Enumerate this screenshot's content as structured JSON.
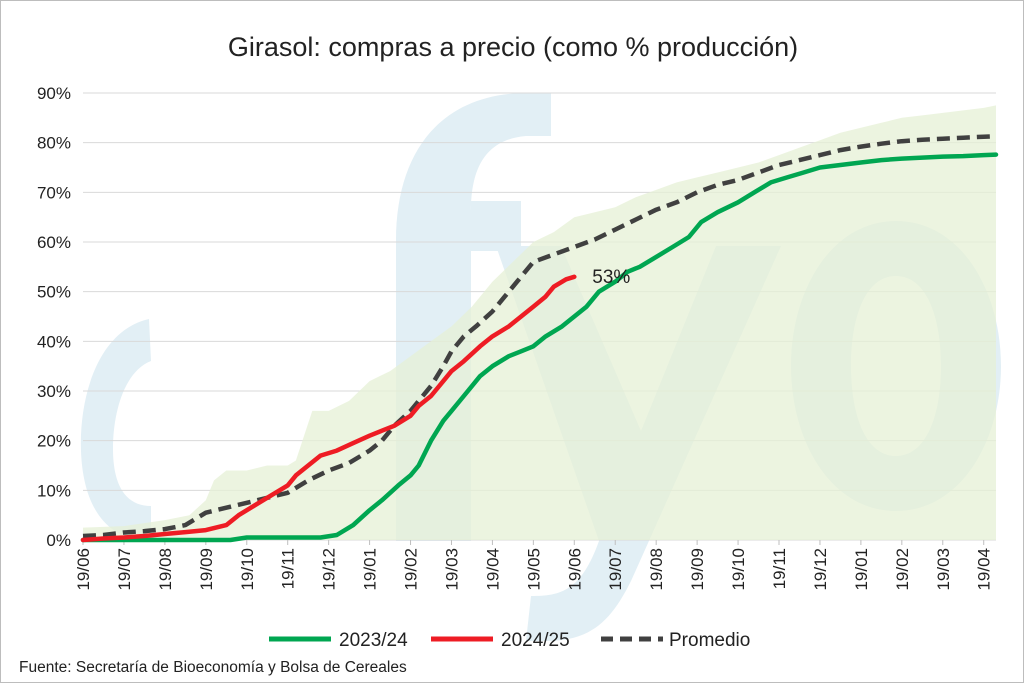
{
  "chart_data": {
    "type": "line",
    "title": "Girasol: compras a precio (como % producción)",
    "source": "Fuente: Secretaría de Bioeconomía y Bolsa de Cereales",
    "xlabel": "",
    "ylabel": "",
    "ylim": [
      0,
      90
    ],
    "yticks": [
      "0%",
      "10%",
      "20%",
      "30%",
      "40%",
      "50%",
      "60%",
      "70%",
      "80%",
      "90%"
    ],
    "x_tick_labels": [
      "19/06",
      "19/07",
      "19/08",
      "19/09",
      "19/10",
      "19/11",
      "19/12",
      "19/01",
      "19/02",
      "19/03",
      "19/04",
      "19/05",
      "19/06",
      "19/07",
      "19/08",
      "19/09",
      "19/10",
      "19/11",
      "19/12",
      "19/01",
      "19/02",
      "19/03",
      "19/04"
    ],
    "grid": "horizontal",
    "legend_position": "bottom",
    "annotation": "53%",
    "watermark": "cfyo",
    "series": [
      {
        "name": "2023/24",
        "color": "#00a651",
        "style": "solid",
        "points": [
          [
            0,
            0
          ],
          [
            1,
            0
          ],
          [
            2,
            0
          ],
          [
            3,
            0
          ],
          [
            3.6,
            0
          ],
          [
            4,
            0.5
          ],
          [
            5,
            0.5
          ],
          [
            5.8,
            0.5
          ],
          [
            6.2,
            1
          ],
          [
            6.6,
            3
          ],
          [
            7,
            6
          ],
          [
            7.3,
            8
          ],
          [
            7.7,
            11
          ],
          [
            8,
            13
          ],
          [
            8.2,
            15
          ],
          [
            8.5,
            20
          ],
          [
            8.8,
            24
          ],
          [
            9,
            26
          ],
          [
            9.3,
            29
          ],
          [
            9.7,
            33
          ],
          [
            10,
            35
          ],
          [
            10.4,
            37
          ],
          [
            10.7,
            38
          ],
          [
            11,
            39
          ],
          [
            11.3,
            41
          ],
          [
            11.7,
            43
          ],
          [
            12,
            45
          ],
          [
            12.3,
            47
          ],
          [
            12.6,
            50
          ],
          [
            13,
            52
          ],
          [
            13.3,
            54
          ],
          [
            13.6,
            55
          ],
          [
            14,
            57
          ],
          [
            14.4,
            59
          ],
          [
            14.8,
            61
          ],
          [
            15.1,
            64
          ],
          [
            15.5,
            66
          ],
          [
            16,
            68
          ],
          [
            16.4,
            70
          ],
          [
            16.8,
            72
          ],
          [
            17.2,
            73
          ],
          [
            17.6,
            74
          ],
          [
            18,
            75
          ],
          [
            18.5,
            75.5
          ],
          [
            19,
            76
          ],
          [
            19.5,
            76.5
          ],
          [
            20,
            76.8
          ],
          [
            20.5,
            77
          ],
          [
            21,
            77.2
          ],
          [
            21.5,
            77.3
          ],
          [
            22,
            77.5
          ],
          [
            22.3,
            77.6
          ]
        ]
      },
      {
        "name": "2024/25",
        "color": "#ee1c24",
        "style": "solid",
        "points": [
          [
            0,
            0
          ],
          [
            0.5,
            0.3
          ],
          [
            1,
            0.5
          ],
          [
            1.5,
            0.8
          ],
          [
            2,
            1.2
          ],
          [
            2.5,
            1.6
          ],
          [
            3,
            2
          ],
          [
            3.5,
            3
          ],
          [
            3.8,
            5
          ],
          [
            4.2,
            7
          ],
          [
            4.6,
            9
          ],
          [
            5,
            11
          ],
          [
            5.2,
            13
          ],
          [
            5.5,
            15
          ],
          [
            5.8,
            17
          ],
          [
            6.2,
            18
          ],
          [
            6.6,
            19.5
          ],
          [
            7,
            21
          ],
          [
            7.3,
            22
          ],
          [
            7.6,
            23
          ],
          [
            8,
            25
          ],
          [
            8.2,
            27
          ],
          [
            8.5,
            29
          ],
          [
            8.8,
            32
          ],
          [
            9,
            34
          ],
          [
            9.3,
            36
          ],
          [
            9.7,
            39
          ],
          [
            10,
            41
          ],
          [
            10.4,
            43
          ],
          [
            10.7,
            45
          ],
          [
            11,
            47
          ],
          [
            11.3,
            49
          ],
          [
            11.5,
            51
          ],
          [
            11.8,
            52.5
          ],
          [
            12,
            53
          ]
        ]
      },
      {
        "name": "Promedio",
        "color": "#404040",
        "style": "dashed",
        "points": [
          [
            0,
            0.8
          ],
          [
            0.5,
            1
          ],
          [
            1,
            1.5
          ],
          [
            1.5,
            1.8
          ],
          [
            2,
            2.2
          ],
          [
            2.5,
            3
          ],
          [
            3,
            5.5
          ],
          [
            3.5,
            6.5
          ],
          [
            4,
            7.5
          ],
          [
            4.5,
            8.5
          ],
          [
            5,
            9.5
          ],
          [
            5.5,
            12
          ],
          [
            6,
            14
          ],
          [
            6.5,
            15.5
          ],
          [
            7,
            18
          ],
          [
            7.3,
            20
          ],
          [
            7.6,
            23
          ],
          [
            8,
            26
          ],
          [
            8.2,
            28
          ],
          [
            8.5,
            31
          ],
          [
            8.8,
            35
          ],
          [
            9,
            38
          ],
          [
            9.3,
            41
          ],
          [
            9.6,
            43
          ],
          [
            10,
            46
          ],
          [
            10.3,
            49
          ],
          [
            10.6,
            52
          ],
          [
            11,
            56
          ],
          [
            11.5,
            57.5
          ],
          [
            12,
            59
          ],
          [
            12.5,
            60.5
          ],
          [
            13,
            62.5
          ],
          [
            13.5,
            64.5
          ],
          [
            14,
            66.5
          ],
          [
            14.5,
            68
          ],
          [
            15,
            70
          ],
          [
            15.5,
            71.5
          ],
          [
            16,
            72.5
          ],
          [
            16.5,
            74
          ],
          [
            17,
            75.5
          ],
          [
            17.5,
            76.5
          ],
          [
            18,
            77.5
          ],
          [
            18.5,
            78.5
          ],
          [
            19,
            79.2
          ],
          [
            19.5,
            79.8
          ],
          [
            20,
            80.3
          ],
          [
            20.5,
            80.6
          ],
          [
            21,
            80.8
          ],
          [
            21.5,
            81
          ],
          [
            22,
            81.2
          ],
          [
            22.3,
            81.3
          ]
        ]
      },
      {
        "name": "",
        "role": "range-band",
        "color": "#e6f0d6",
        "upper": [
          [
            0,
            2.5
          ],
          [
            1,
            2.8
          ],
          [
            2,
            4
          ],
          [
            2.6,
            5
          ],
          [
            3,
            8
          ],
          [
            3.2,
            12
          ],
          [
            3.5,
            14
          ],
          [
            4,
            14
          ],
          [
            4.5,
            15
          ],
          [
            5,
            15
          ],
          [
            5.2,
            16
          ],
          [
            5.6,
            26
          ],
          [
            6,
            26
          ],
          [
            6.5,
            28
          ],
          [
            7,
            32
          ],
          [
            7.5,
            34
          ],
          [
            8,
            37
          ],
          [
            8.5,
            40
          ],
          [
            9,
            43
          ],
          [
            9.5,
            47
          ],
          [
            10,
            52
          ],
          [
            10.5,
            56
          ],
          [
            11,
            60
          ],
          [
            11.5,
            62
          ],
          [
            12,
            65
          ],
          [
            12.5,
            66
          ],
          [
            13,
            67
          ],
          [
            13.5,
            69
          ],
          [
            14,
            70.5
          ],
          [
            14.5,
            72
          ],
          [
            15,
            73
          ],
          [
            15.5,
            74
          ],
          [
            16,
            75
          ],
          [
            16.5,
            76
          ],
          [
            17,
            77.5
          ],
          [
            17.5,
            79
          ],
          [
            18,
            80.5
          ],
          [
            18.5,
            82
          ],
          [
            19,
            83
          ],
          [
            19.5,
            84
          ],
          [
            20,
            85
          ],
          [
            20.5,
            85.5
          ],
          [
            21,
            86
          ],
          [
            21.5,
            86.5
          ],
          [
            22,
            87
          ],
          [
            22.3,
            87.5
          ]
        ]
      }
    ]
  }
}
